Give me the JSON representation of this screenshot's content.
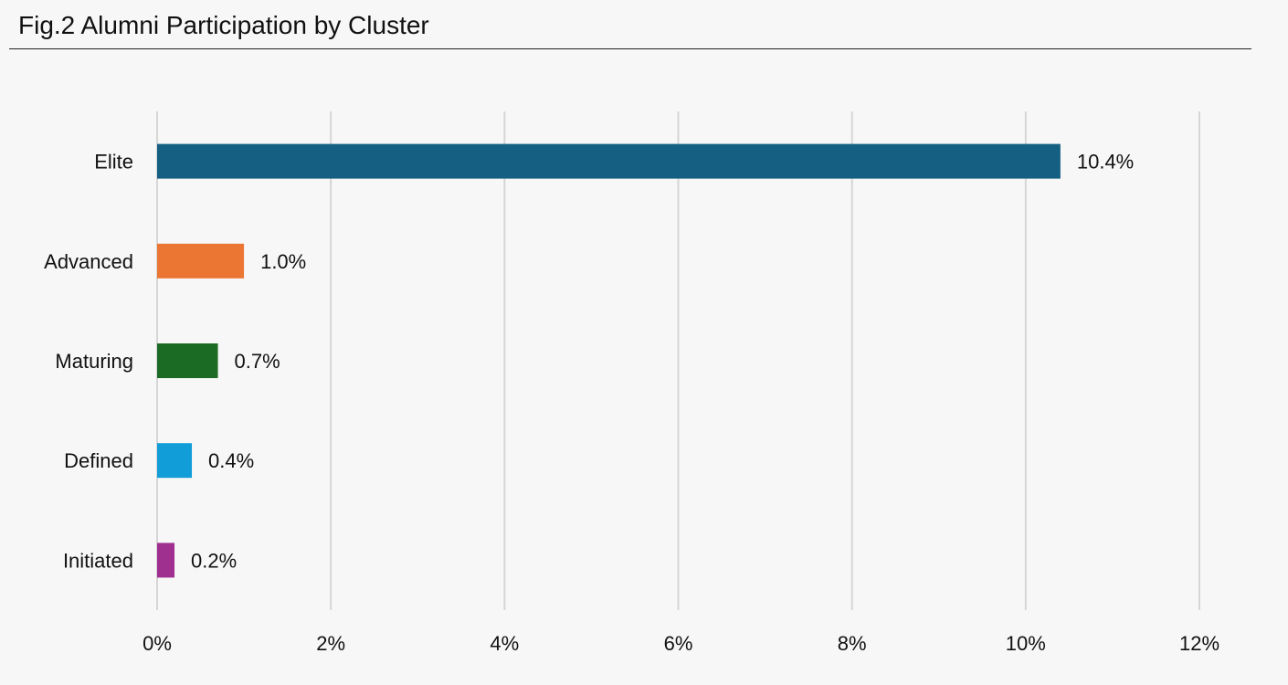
{
  "chart_data": {
    "type": "bar",
    "orientation": "horizontal",
    "title": "Fig.2 Alumni Participation by Cluster",
    "xlabel": "",
    "ylabel": "",
    "categories": [
      "Elite",
      "Advanced",
      "Maturing",
      "Defined",
      "Initiated"
    ],
    "values": [
      10.4,
      1.0,
      0.7,
      0.4,
      0.2
    ],
    "value_labels": [
      "10.4%",
      "1.0%",
      "0.7%",
      "0.4%",
      "0.2%"
    ],
    "colors": [
      "#155f82",
      "#eb7634",
      "#1c6b25",
      "#109dd8",
      "#a0308f"
    ],
    "xlim": [
      0,
      12
    ],
    "x_ticks": [
      0,
      2,
      4,
      6,
      8,
      10,
      12
    ],
    "x_tick_labels": [
      "0%",
      "2%",
      "4%",
      "6%",
      "8%",
      "10%",
      "12%"
    ],
    "grid": "vertical",
    "legend": "none"
  }
}
